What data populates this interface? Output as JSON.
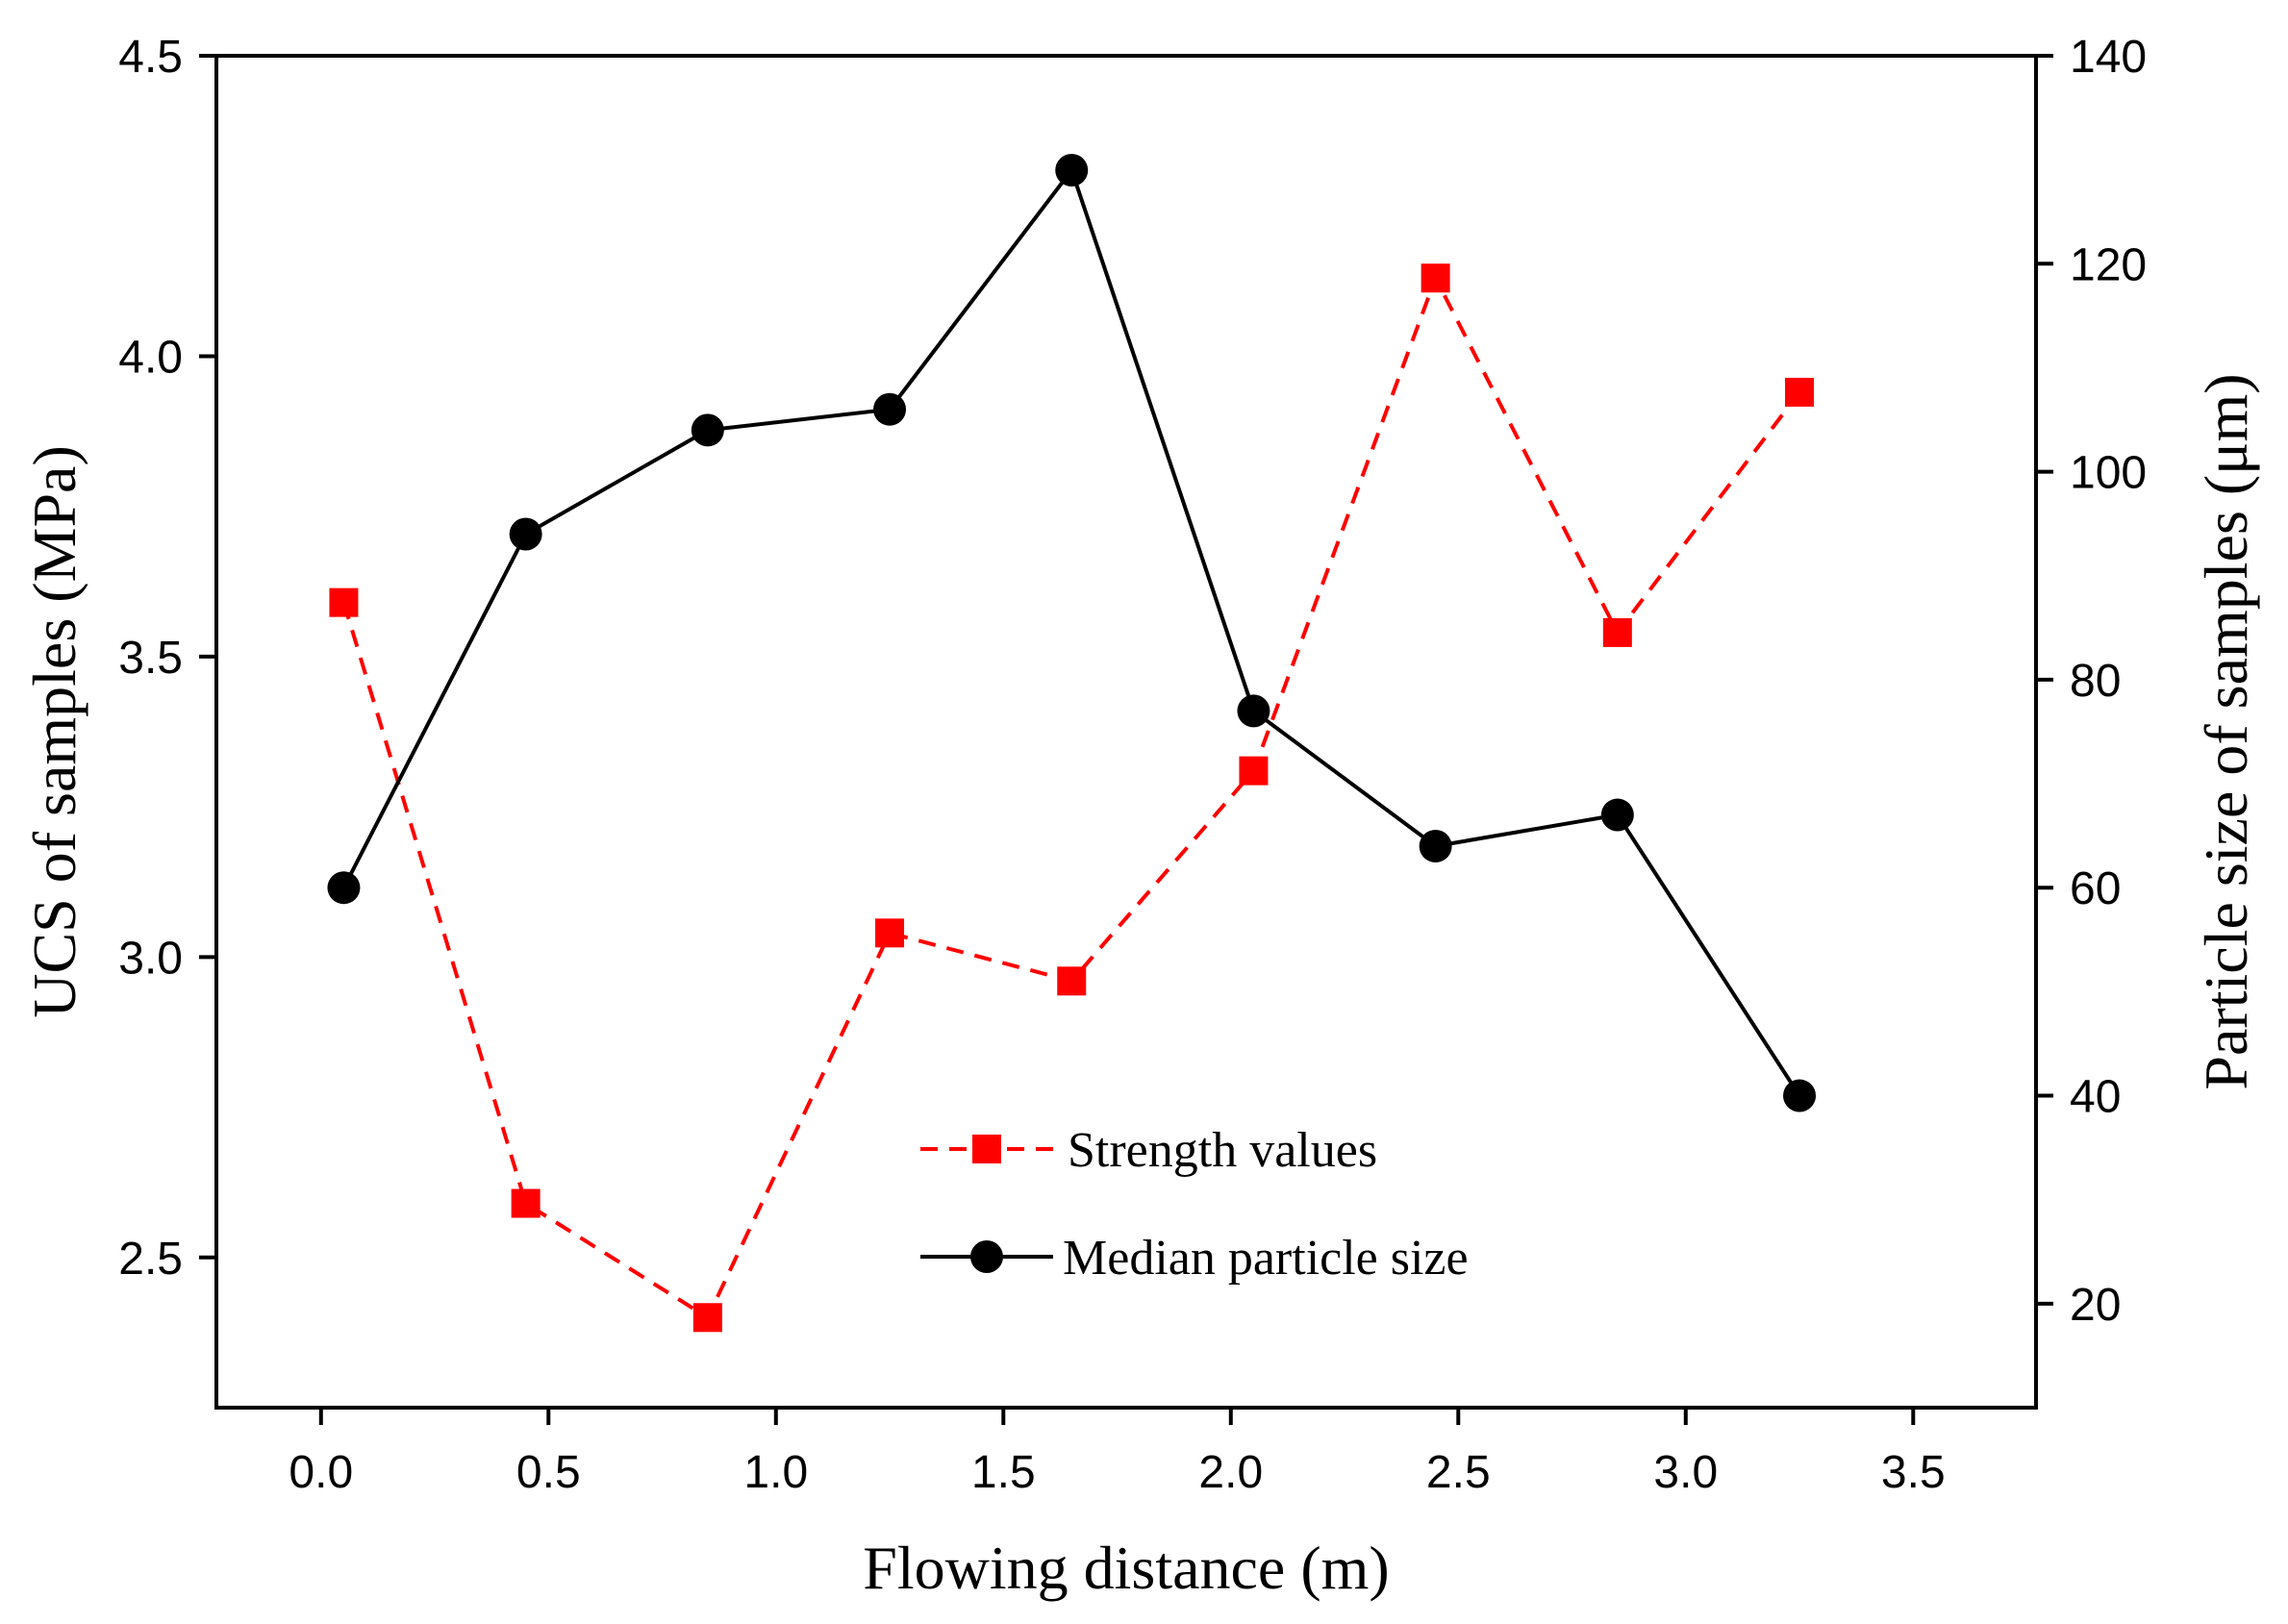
{
  "chart_data": {
    "type": "line",
    "xlabel": "Flowing distance (m)",
    "ylabel_left": "UCS of samples (MPa)",
    "ylabel_right": "Particle size of samples (μm)",
    "xlim": [
      -0.23,
      3.77
    ],
    "ylim_left": [
      2.25,
      4.5
    ],
    "ylim_right": [
      10,
      140
    ],
    "x_ticks": [
      "0.0",
      "0.5",
      "1.0",
      "1.5",
      "2.0",
      "2.5",
      "3.0",
      "3.5"
    ],
    "y_left_ticks": [
      "2.5",
      "3.0",
      "3.5",
      "4.0",
      "4.5"
    ],
    "y_right_ticks": [
      "20",
      "40",
      "60",
      "80",
      "100",
      "120",
      "140"
    ],
    "grid": false,
    "legend_position": "bottom-center",
    "series": [
      {
        "name": "Strength values",
        "axis": "left",
        "color": "#ff0000",
        "line_style": "dashed",
        "marker": "square",
        "x": [
          0.05,
          0.45,
          0.85,
          1.25,
          1.65,
          2.05,
          2.45,
          2.85,
          3.25
        ],
        "y": [
          3.59,
          2.59,
          2.4,
          3.04,
          2.96,
          3.31,
          4.13,
          3.54,
          3.94
        ]
      },
      {
        "name": "Median particle size",
        "axis": "right",
        "color": "#000000",
        "line_style": "solid",
        "marker": "circle",
        "x": [
          0.05,
          0.45,
          0.85,
          1.25,
          1.65,
          2.05,
          2.45,
          2.85,
          3.25
        ],
        "y": [
          60,
          94,
          104,
          106,
          129,
          77,
          64,
          67,
          40
        ]
      }
    ]
  }
}
